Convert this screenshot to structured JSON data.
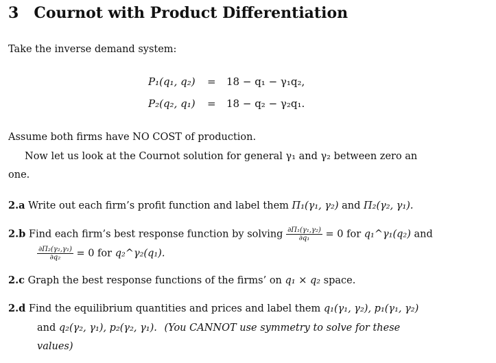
{
  "section": {
    "number": "3",
    "title": "Cournot with Product Differentiation"
  },
  "intro": "Take the inverse demand system:",
  "equations": [
    {
      "lhs": "P₁(q₁, q₂)",
      "eq": "=",
      "rhs": "18 − q₁ − γ₁q₂,"
    },
    {
      "lhs": "P₂(q₂, q₁)",
      "eq": "=",
      "rhs": "18 − q₂ − γ₂q₁."
    }
  ],
  "assume": "Assume both firms have NO COST of production.",
  "now_line1": "Now let us look at the Cournot solution for general γ₁ and γ₂ between zero an",
  "now_line2": "one.",
  "items": {
    "a": {
      "label": "2.a",
      "text": "Write out each firm’s profit function and label them",
      "m1": "Π₁(γ₁, γ₂)",
      "and": "and",
      "m2": "Π₂(γ₂, γ₁)."
    },
    "b": {
      "label": "2.b",
      "text": "Find each firm’s best response function by solving",
      "frac1_num": "∂Π₁(γ₁,γ₂)",
      "frac1_den": "∂q₁",
      "eq0": "= 0 for",
      "m1": "q₁^γ₁(q₂)",
      "and": "and",
      "frac2_num": "∂Π₂(γ₂,γ₁)",
      "frac2_den": "∂q₂",
      "eq0b": "= 0 for",
      "m2": "q₂^γ₂(q₁)."
    },
    "c": {
      "label": "2.c",
      "text": "Graph the best response functions of the firms’ on",
      "m": "q₁ × q₂",
      "tail": "space."
    },
    "d": {
      "label": "2.d",
      "text": "Find the equilibrium quantities and prices and label them",
      "m1": "q₁(γ₁, γ₂), p₁(γ₁, γ₂)",
      "and": "and",
      "m2": "q₂(γ₂, γ₁), p₂(γ₂, γ₁).",
      "note1": "(You CANNOT use symmetry to solve for these",
      "note2": "values)"
    }
  }
}
